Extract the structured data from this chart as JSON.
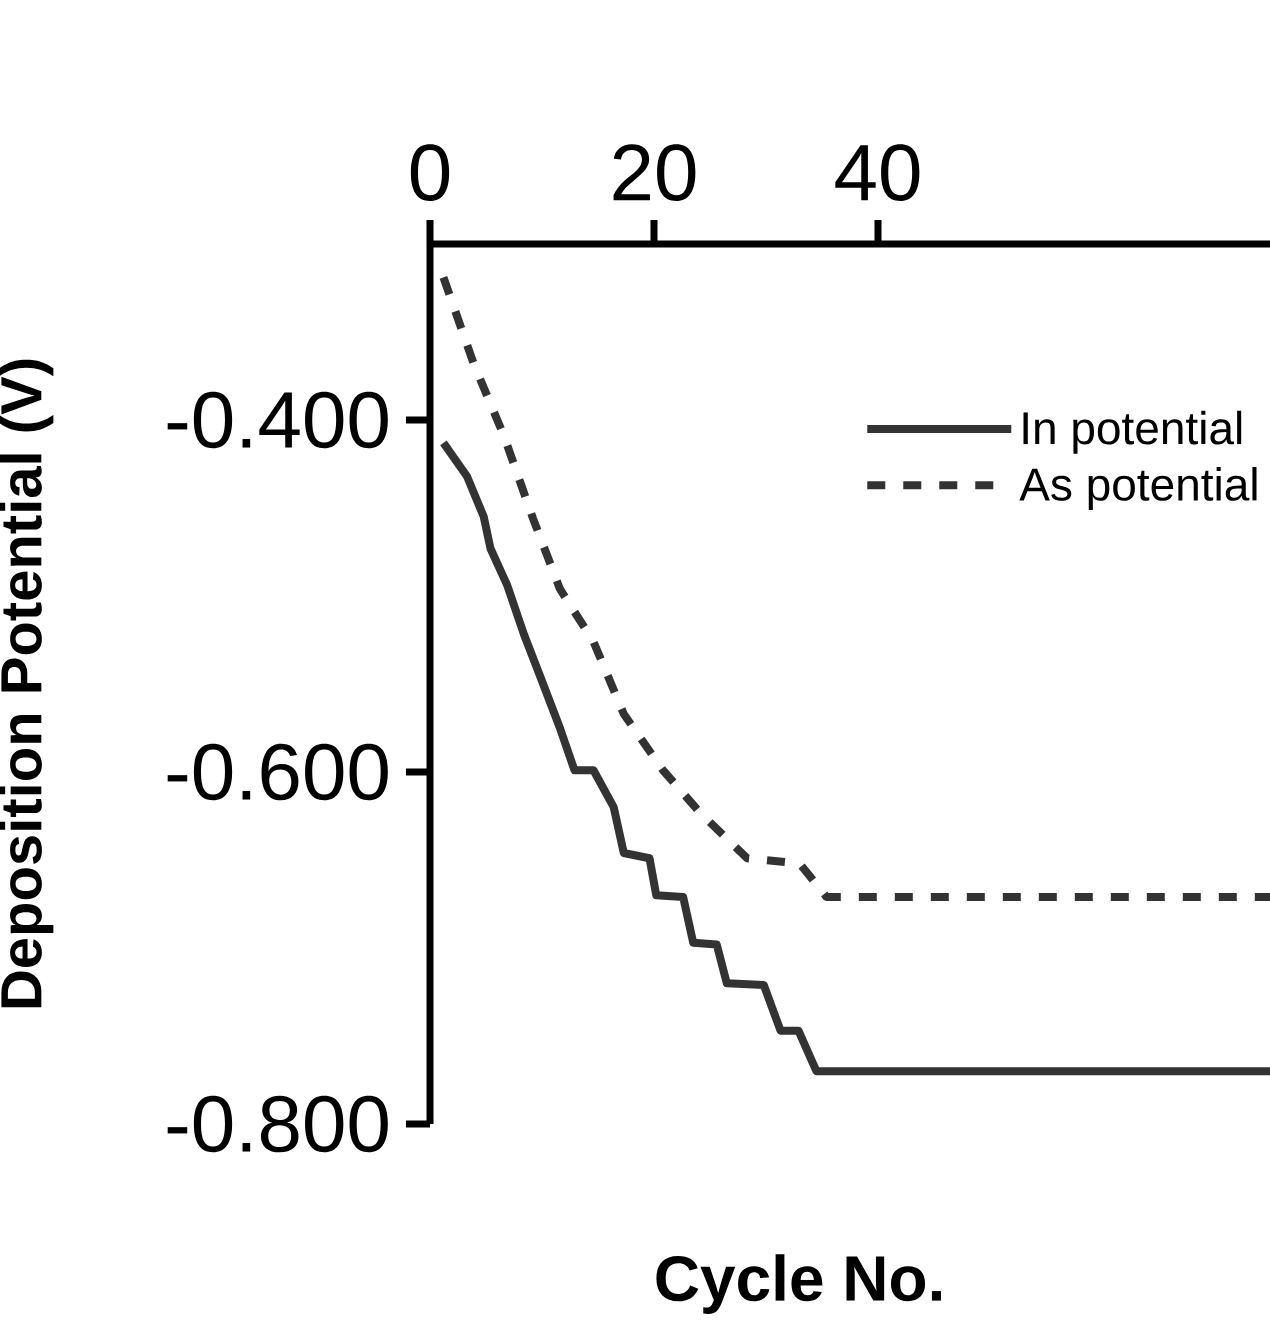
{
  "chart_data": {
    "type": "line",
    "xlabel": "Cycle No.",
    "ylabel": "Deposition Potential (V)",
    "xlim": [
      0,
      75
    ],
    "ylim": [
      -0.8,
      -0.3
    ],
    "xticks": [
      0,
      20,
      40
    ],
    "yticks": [
      {
        "value": -0.8,
        "label": "-0.800"
      },
      {
        "value": -0.6,
        "label": "-0.600"
      },
      {
        "value": -0.4,
        "label": "-0.400"
      }
    ],
    "legend": "top right",
    "grid": false,
    "series": [
      {
        "name": "In potential",
        "color": "#333333",
        "line_style": "solid",
        "x": [
          1.2,
          3.3,
          4.8,
          5.4,
          6.9,
          8.4,
          9.8,
          11.6,
          12.9,
          14.6,
          16.4,
          17.3,
          19.6,
          20.2,
          22.6,
          23.5,
          25.6,
          26.5,
          29.8,
          31.3,
          32.9,
          34.5,
          75
        ],
        "values": [
          -0.413,
          -0.432,
          -0.455,
          -0.473,
          -0.494,
          -0.522,
          -0.545,
          -0.575,
          -0.599,
          -0.599,
          -0.62,
          -0.646,
          -0.649,
          -0.67,
          -0.671,
          -0.697,
          -0.698,
          -0.72,
          -0.721,
          -0.747,
          -0.747,
          -0.77,
          -0.77
        ]
      },
      {
        "name": "As potential",
        "color": "#333333",
        "line_style": "dashed",
        "x": [
          1.2,
          3.9,
          6.6,
          9.2,
          11.6,
          14.6,
          17.3,
          20.8,
          24.1,
          28.3,
          33.0,
          35.4,
          75
        ],
        "values": [
          -0.319,
          -0.368,
          -0.409,
          -0.456,
          -0.496,
          -0.526,
          -0.567,
          -0.599,
          -0.623,
          -0.649,
          -0.652,
          -0.671,
          -0.671
        ]
      }
    ]
  }
}
